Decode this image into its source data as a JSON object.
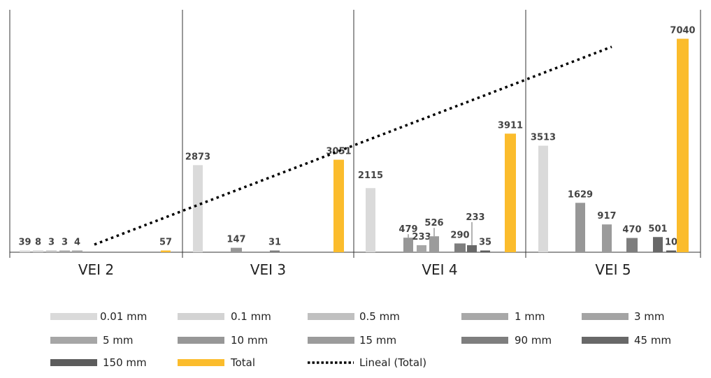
{
  "chart_data": {
    "type": "bar",
    "groups": [
      "VEI 2",
      "VEI 3",
      "VEI 4",
      "VEI 5"
    ],
    "ylim": [
      0,
      7500
    ],
    "grid": false,
    "legend_position": "bottom",
    "series": [
      {
        "name": "0.01 mm",
        "color": "#dadada",
        "values": [
          39,
          2873,
          2115,
          3513
        ]
      },
      {
        "name": "0.1 mm",
        "color": "#d3d3d3",
        "values": [
          8,
          null,
          null,
          null
        ]
      },
      {
        "name": "0.5 mm",
        "color": "#c0c0c0",
        "values": [
          3,
          null,
          null,
          null
        ]
      },
      {
        "name": "1 mm",
        "color": "#a8a8a8",
        "values": [
          3,
          null,
          null,
          null
        ]
      },
      {
        "name": "3 mm",
        "color": "#a4a4a4",
        "values": [
          4,
          null,
          null,
          null
        ]
      },
      {
        "name": "5 mm",
        "color": "#a6a6a6",
        "values": [
          null,
          null,
          233,
          null
        ]
      },
      {
        "name": "10 mm",
        "color": "#979797",
        "values": [
          null,
          147,
          479,
          1629
        ]
      },
      {
        "name": "15 mm",
        "color": "#9b9b9b",
        "values": [
          null,
          null,
          526,
          917
        ]
      },
      {
        "name": "90 mm",
        "color": "#7e7e7e",
        "values": [
          null,
          31,
          290,
          470
        ]
      },
      {
        "name": "45 mm",
        "color": "#686868",
        "values": [
          null,
          null,
          233,
          501
        ]
      },
      {
        "name": "150 mm",
        "color": "#5c5c5c",
        "values": [
          null,
          null,
          35,
          10
        ]
      },
      {
        "name": "Total",
        "color": "#fbbc2c",
        "values": [
          57,
          3051,
          3911,
          7040
        ]
      }
    ],
    "trendline": {
      "name": "Lineal (Total)",
      "of": "Total",
      "style": "dotted",
      "color": "#000000"
    },
    "bar_order": [
      [
        "0.01 mm",
        "0.1 mm",
        "0.5 mm",
        "1 mm",
        "3 mm",
        "Total"
      ],
      [
        "0.01 mm",
        "10 mm",
        "90 mm",
        "Total"
      ],
      [
        "0.01 mm",
        "10 mm",
        "5 mm",
        "15 mm",
        "90 mm",
        "45 mm",
        "150 mm",
        "Total"
      ],
      [
        "0.01 mm",
        "10 mm",
        "15 mm",
        "90 mm",
        "45 mm",
        "150 mm",
        "Total"
      ]
    ]
  }
}
